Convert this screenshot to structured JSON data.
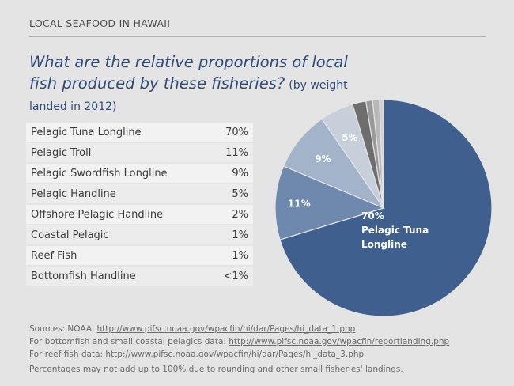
{
  "header": {
    "kicker": "LOCAL SEAFOOD IN HAWAII",
    "title": "What are the relative proportions of local fish produced by these fisheries?",
    "title_note": "(by weight landed in 2012)"
  },
  "table": {
    "rows": [
      {
        "label": "Pelagic Tuna Longline",
        "value": "70%"
      },
      {
        "label": "Pelagic Troll",
        "value": "11%"
      },
      {
        "label": "Pelagic Swordfish Longline",
        "value": "9%"
      },
      {
        "label": "Pelagic Handline",
        "value": "5%"
      },
      {
        "label": "Offshore Pelagic Handline",
        "value": "2%"
      },
      {
        "label": "Coastal Pelagic",
        "value": "1%"
      },
      {
        "label": "Reef Fish",
        "value": "1%"
      },
      {
        "label": "Bottomfish Handline",
        "value": "<1%"
      }
    ]
  },
  "chart_data": {
    "type": "pie",
    "categories": [
      "Pelagic Tuna Longline",
      "Pelagic Troll",
      "Pelagic Swordfish Longline",
      "Pelagic Handline",
      "Offshore Pelagic Handline",
      "Coastal Pelagic",
      "Reef Fish",
      "Bottomfish Handline"
    ],
    "values": [
      70,
      11,
      9,
      5,
      2,
      1,
      1,
      0.6
    ],
    "colors": [
      "#3f5f8e",
      "#6f88ad",
      "#a3b3c9",
      "#c7cfdb",
      "#6e6e6e",
      "#9a9a9a",
      "#b8b8b8",
      "#d2d2d2"
    ],
    "slice_labels": [
      {
        "index": 0,
        "lines": [
          "70%",
          "Pelagic Tuna",
          "Longline"
        ]
      },
      {
        "index": 1,
        "lines": [
          "11%"
        ]
      },
      {
        "index": 2,
        "lines": [
          "9%"
        ]
      },
      {
        "index": 3,
        "lines": [
          "5%"
        ]
      }
    ],
    "start": "12 o'clock",
    "direction": "clockwise",
    "label_color": "#ffffff"
  },
  "sources": {
    "line1_text": "Sources: NOAA.",
    "line1_link": "http://www.pifsc.noaa.gov/wpacfin/hi/dar/Pages/hi_data_1.php",
    "line2_text": "For bottomfish and small coastal pelagics data:",
    "line2_link": "http://www.pifsc.noaa.gov/wpacfin/reportlanding.php",
    "line3_text": "For reef fish data:",
    "line3_link": "http://www.pifsc.noaa.gov/wpacfin/hi/dar/Pages/hi_data_3.php",
    "footnote": "Percentages may not add up to 100% due to rounding and other small fisheries' landings."
  }
}
